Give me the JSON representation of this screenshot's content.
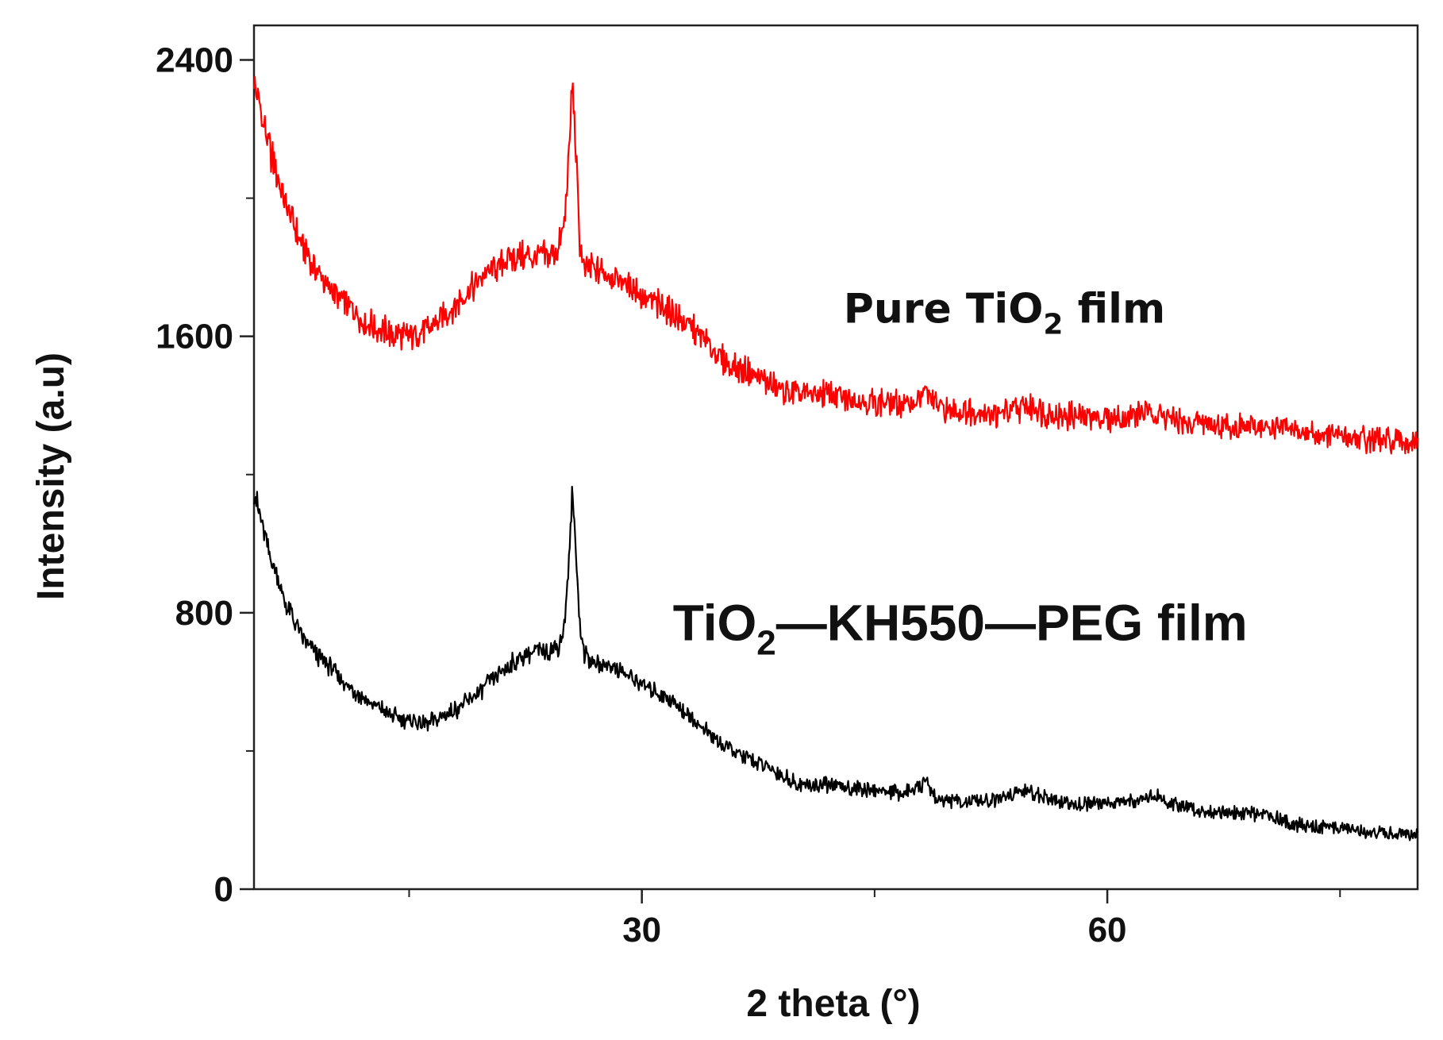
{
  "chart_data": {
    "type": "line",
    "title": "",
    "xlabel": "2 theta (°)",
    "ylabel": "Intensity (a.u)",
    "xlim": [
      5,
      80
    ],
    "ylim": [
      0,
      2500
    ],
    "x_ticks": [
      30,
      60
    ],
    "x_tick_labels": [
      "30",
      "60"
    ],
    "y_ticks": [
      0,
      800,
      1600,
      2400
    ],
    "y_tick_labels": [
      "0",
      "800",
      "1600",
      "2400"
    ],
    "annotations": {
      "pure": {
        "text_a": "Pure TiO",
        "sub": "2",
        "text_b": " film",
        "x": 43,
        "y": 1640
      },
      "composite": {
        "text_a": "TiO",
        "sub": "2",
        "text_b": "—KH550—PEG film",
        "x": 32,
        "y": 720
      }
    },
    "series": [
      {
        "name": "Pure TiO2 film",
        "color": "#ff0000",
        "points": [
          [
            5,
            2325
          ],
          [
            6,
            2140
          ],
          [
            7,
            1990
          ],
          [
            8,
            1870
          ],
          [
            9,
            1790
          ],
          [
            10,
            1735
          ],
          [
            11,
            1690
          ],
          [
            12,
            1650
          ],
          [
            13,
            1620
          ],
          [
            14,
            1605
          ],
          [
            15,
            1600
          ],
          [
            16,
            1615
          ],
          [
            17,
            1645
          ],
          [
            18,
            1690
          ],
          [
            19,
            1740
          ],
          [
            20,
            1780
          ],
          [
            21,
            1815
          ],
          [
            22,
            1830
          ],
          [
            23,
            1825
          ],
          [
            24,
            1830
          ],
          [
            24.6,
            1850
          ],
          [
            25,
            1930
          ],
          [
            25.2,
            2050
          ],
          [
            25.4,
            2210
          ],
          [
            25.5,
            2330
          ],
          [
            25.6,
            2260
          ],
          [
            25.8,
            2080
          ],
          [
            26,
            1880
          ],
          [
            26.3,
            1790
          ],
          [
            27,
            1795
          ],
          [
            28,
            1775
          ],
          [
            29,
            1750
          ],
          [
            30,
            1720
          ],
          [
            31,
            1690
          ],
          [
            32,
            1665
          ],
          [
            33,
            1630
          ],
          [
            34,
            1590
          ],
          [
            35,
            1540
          ],
          [
            36,
            1510
          ],
          [
            37,
            1495
          ],
          [
            38,
            1470
          ],
          [
            39,
            1445
          ],
          [
            40,
            1435
          ],
          [
            41,
            1430
          ],
          [
            42,
            1440
          ],
          [
            43,
            1420
          ],
          [
            44,
            1415
          ],
          [
            45,
            1410
          ],
          [
            46,
            1405
          ],
          [
            47,
            1400
          ],
          [
            48,
            1420
          ],
          [
            48.3,
            1445
          ],
          [
            48.6,
            1420
          ],
          [
            49,
            1395
          ],
          [
            50,
            1385
          ],
          [
            51,
            1385
          ],
          [
            52,
            1380
          ],
          [
            53,
            1375
          ],
          [
            54,
            1385
          ],
          [
            55,
            1400
          ],
          [
            56,
            1375
          ],
          [
            57,
            1370
          ],
          [
            58,
            1370
          ],
          [
            59,
            1368
          ],
          [
            60,
            1365
          ],
          [
            61,
            1362
          ],
          [
            62,
            1375
          ],
          [
            63,
            1380
          ],
          [
            64,
            1360
          ],
          [
            65,
            1350
          ],
          [
            66,
            1350
          ],
          [
            67,
            1345
          ],
          [
            68,
            1342
          ],
          [
            69,
            1340
          ],
          [
            70,
            1335
          ],
          [
            71,
            1332
          ],
          [
            72,
            1330
          ],
          [
            73,
            1320
          ],
          [
            74,
            1315
          ],
          [
            75,
            1310
          ],
          [
            76,
            1305
          ],
          [
            77,
            1300
          ],
          [
            78,
            1297
          ],
          [
            79,
            1295
          ],
          [
            80,
            1290
          ]
        ]
      },
      {
        "name": "TiO2—KH550—PEG film",
        "color": "#000000",
        "points": [
          [
            5,
            1150
          ],
          [
            6,
            970
          ],
          [
            7,
            830
          ],
          [
            8,
            740
          ],
          [
            9,
            680
          ],
          [
            10,
            640
          ],
          [
            11,
            590
          ],
          [
            12,
            555
          ],
          [
            13,
            525
          ],
          [
            14,
            500
          ],
          [
            15,
            485
          ],
          [
            16,
            480
          ],
          [
            17,
            495
          ],
          [
            18,
            520
          ],
          [
            19,
            550
          ],
          [
            20,
            590
          ],
          [
            21,
            630
          ],
          [
            22,
            665
          ],
          [
            23,
            690
          ],
          [
            24,
            695
          ],
          [
            24.6,
            700
          ],
          [
            25,
            760
          ],
          [
            25.2,
            880
          ],
          [
            25.4,
            1040
          ],
          [
            25.5,
            1140
          ],
          [
            25.6,
            1090
          ],
          [
            25.8,
            940
          ],
          [
            26,
            760
          ],
          [
            26.3,
            680
          ],
          [
            27,
            650
          ],
          [
            28,
            650
          ],
          [
            29,
            620
          ],
          [
            30,
            595
          ],
          [
            31,
            570
          ],
          [
            32,
            545
          ],
          [
            33,
            505
          ],
          [
            34,
            460
          ],
          [
            35,
            425
          ],
          [
            36,
            395
          ],
          [
            37,
            375
          ],
          [
            38,
            355
          ],
          [
            39,
            330
          ],
          [
            40,
            305
          ],
          [
            41,
            300
          ],
          [
            42,
            300
          ],
          [
            43,
            298
          ],
          [
            44,
            290
          ],
          [
            45,
            285
          ],
          [
            46,
            282
          ],
          [
            47,
            280
          ],
          [
            48,
            295
          ],
          [
            48.3,
            320
          ],
          [
            48.6,
            290
          ],
          [
            49,
            260
          ],
          [
            50,
            255
          ],
          [
            51,
            252
          ],
          [
            52,
            252
          ],
          [
            53,
            260
          ],
          [
            54,
            275
          ],
          [
            55,
            285
          ],
          [
            56,
            262
          ],
          [
            57,
            250
          ],
          [
            58,
            245
          ],
          [
            59,
            248
          ],
          [
            60,
            250
          ],
          [
            61,
            255
          ],
          [
            62,
            262
          ],
          [
            63,
            270
          ],
          [
            64,
            250
          ],
          [
            65,
            235
          ],
          [
            66,
            228
          ],
          [
            67,
            225
          ],
          [
            68,
            222
          ],
          [
            69,
            218
          ],
          [
            70,
            215
          ],
          [
            71,
            205
          ],
          [
            72,
            190
          ],
          [
            73,
            180
          ],
          [
            74,
            182
          ],
          [
            75,
            178
          ],
          [
            76,
            172
          ],
          [
            77,
            165
          ],
          [
            78,
            162
          ],
          [
            79,
            160
          ],
          [
            80,
            155
          ]
        ]
      }
    ]
  }
}
